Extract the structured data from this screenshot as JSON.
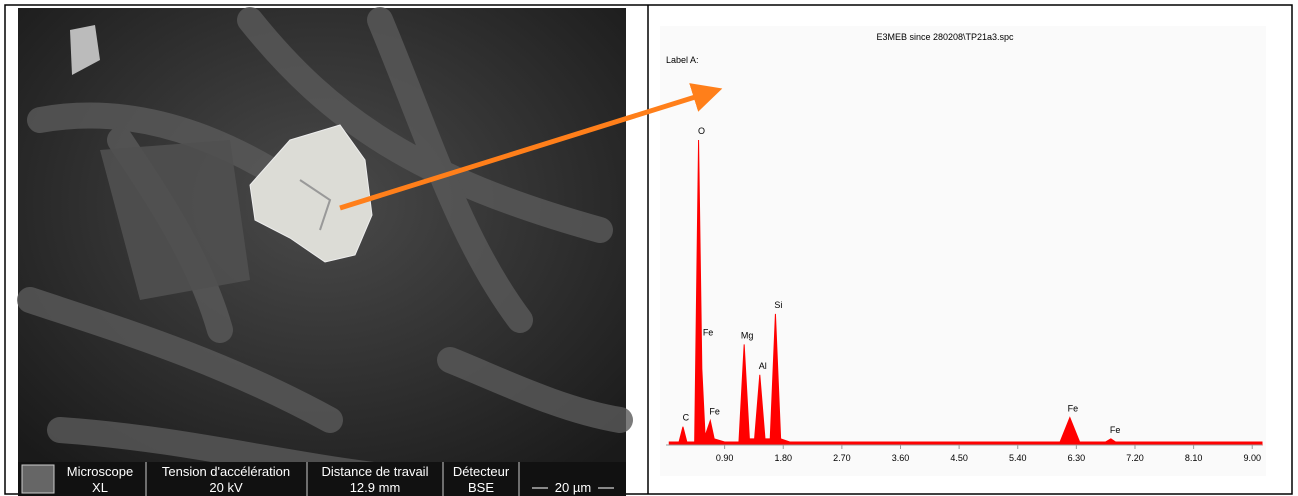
{
  "sem_panel": {
    "info": [
      {
        "label": "Microscope",
        "value": "XL"
      },
      {
        "label": "Tension d'accélération",
        "value": "20 kV"
      },
      {
        "label": "Distance de travail",
        "value": "12.9 mm"
      },
      {
        "label": "Détecteur",
        "value": "BSE"
      }
    ],
    "scale": "20 µm"
  },
  "chart_data": {
    "type": "area",
    "title": "E3MEB since 280208\\TP21a3.spc",
    "subtitle": "Label A:",
    "color": "#ff0000",
    "x": [
      0.05,
      0.2,
      0.26,
      0.32,
      0.44,
      0.5,
      0.55,
      0.6,
      0.68,
      0.74,
      0.9,
      1.12,
      1.2,
      1.28,
      1.36,
      1.44,
      1.52,
      1.6,
      1.68,
      1.76,
      1.9,
      6.05,
      6.2,
      6.35,
      6.75,
      6.83,
      6.9,
      9.15
    ],
    "values": [
      1,
      1,
      6,
      1,
      1,
      100,
      25,
      3,
      8,
      2,
      1,
      1,
      33,
      2,
      2,
      23,
      2,
      2,
      43,
      2,
      1,
      1,
      9,
      1,
      1,
      2,
      1,
      1
    ],
    "xlim": [
      0,
      9.15
    ],
    "ylim": [
      0,
      100
    ],
    "xticks": [
      {
        "value": 0.9,
        "label": "0.90"
      },
      {
        "value": 1.8,
        "label": "1.80"
      },
      {
        "value": 2.7,
        "label": "2.70"
      },
      {
        "value": 3.6,
        "label": "3.60"
      },
      {
        "value": 4.5,
        "label": "4.50"
      },
      {
        "value": 5.4,
        "label": "5.40"
      },
      {
        "value": 6.3,
        "label": "6.30"
      },
      {
        "value": 7.2,
        "label": "7.20"
      },
      {
        "value": 8.1,
        "label": "8.10"
      },
      {
        "value": 9,
        "label": "9.00"
      }
    ],
    "annotations": [
      {
        "text": "C",
        "x": 0.26,
        "y": 6
      },
      {
        "text": "O",
        "x": 0.5,
        "y": 100
      },
      {
        "text": "Fe",
        "x": 0.6,
        "y": 34
      },
      {
        "text": "Fe",
        "x": 0.7,
        "y": 8
      },
      {
        "text": "Mg",
        "x": 1.2,
        "y": 33
      },
      {
        "text": "Al",
        "x": 1.44,
        "y": 23
      },
      {
        "text": "Si",
        "x": 1.68,
        "y": 43
      },
      {
        "text": "Fe",
        "x": 6.2,
        "y": 9
      },
      {
        "text": "Fe",
        "x": 6.85,
        "y": 2
      }
    ]
  }
}
